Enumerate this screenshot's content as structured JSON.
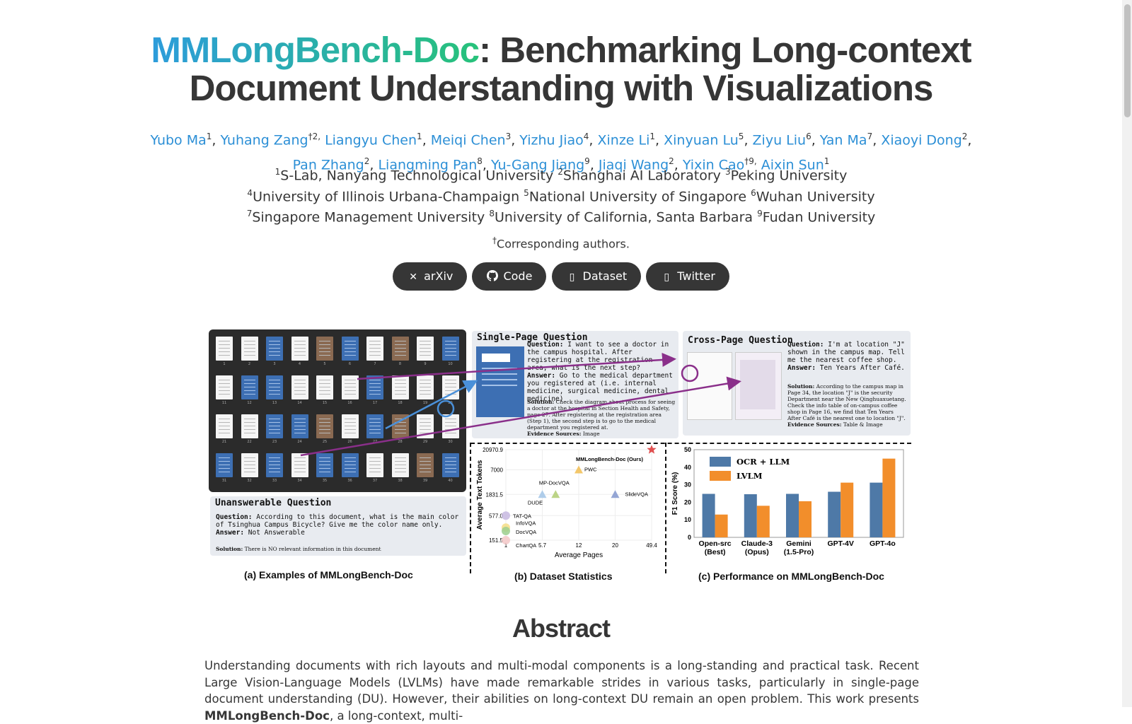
{
  "title": {
    "highlight": "MMLongBench-Doc",
    "rest": ": Benchmarking Long-context Document Understanding with Visualizations"
  },
  "authors": [
    {
      "name": "Yubo Ma",
      "sup": "1"
    },
    {
      "name": "Yuhang Zang",
      "sup": "†2,"
    },
    {
      "name": "Liangyu Chen",
      "sup": "1"
    },
    {
      "name": "Meiqi Chen",
      "sup": "3"
    },
    {
      "name": "Yizhu Jiao",
      "sup": "4"
    },
    {
      "name": "Xinze Li",
      "sup": "1"
    },
    {
      "name": "Xinyuan Lu",
      "sup": "5"
    },
    {
      "name": "Ziyu Liu",
      "sup": "6"
    },
    {
      "name": "Yan Ma",
      "sup": "7"
    },
    {
      "name": "Xiaoyi Dong",
      "sup": "2"
    },
    {
      "name": "Pan Zhang",
      "sup": "2"
    },
    {
      "name": "Liangming Pan",
      "sup": "8"
    },
    {
      "name": "Yu-Gang Jiang",
      "sup": "9"
    },
    {
      "name": "Jiaqi Wang",
      "sup": "2"
    },
    {
      "name": "Yixin Cao",
      "sup": "†9,"
    },
    {
      "name": "Aixin Sun",
      "sup": "1"
    }
  ],
  "affiliations": [
    [
      {
        "sup": "1",
        "text": "S-Lab, Nanyang Technological University "
      },
      {
        "sup": "2",
        "text": "Shanghai AI Laboratory "
      },
      {
        "sup": "3",
        "text": "Peking University"
      }
    ],
    [
      {
        "sup": "4",
        "text": "University of Illinois Urbana-Champaign "
      },
      {
        "sup": "5",
        "text": "National University of Singapore "
      },
      {
        "sup": "6",
        "text": "Wuhan University"
      }
    ],
    [
      {
        "sup": "7",
        "text": "Singapore Management University "
      },
      {
        "sup": "8",
        "text": "University of California, Santa Barbara "
      },
      {
        "sup": "9",
        "text": "Fudan University"
      }
    ]
  ],
  "corresponding": {
    "sup": "†",
    "text": "Corresponding authors."
  },
  "links": [
    {
      "label": "arXiv",
      "icon": "arxiv-icon"
    },
    {
      "label": "Code",
      "icon": "github-icon"
    },
    {
      "label": "Dataset",
      "icon": "dataset-icon"
    },
    {
      "label": "Twitter",
      "icon": "twitter-icon"
    }
  ],
  "figure": {
    "single_page": {
      "title": "Single-Page Question",
      "q_label": "Question:",
      "q": "I want to see a doctor in the campus hospital. After registering at the registration area, what is the next step?",
      "a_label": "Answer:",
      "a": "Go to the medical department you registered at (i.e. internal medicine, surgical medicine, dental medicine)",
      "sol_label": "Solution:",
      "sol": "Check the diagram about process for seeing a doctor at the hospital in Section Health and Safety, page 27. After registering at the registration area (Step 1), the second step is to go to the medical department you registered at.",
      "ev_label": "Evidence Sources:",
      "ev": "Image"
    },
    "cross_page": {
      "title": "Cross-Page Question",
      "q_label": "Question:",
      "q": "I'm at location \"J\" shown in the campus map. Tell me the nearest coffee shop.",
      "a_label": "Answer:",
      "a": "Ten Years After Café.",
      "sol_label": "Solution:",
      "sol": "According to the campus map in Page 34, the location \"J\" is the security Department near the New Qinghuaxuetang. Check the info table of on-campus coffee shop in Page 16, we find that Ten Years After Café is the nearest one to location \"J\".",
      "ev_label": "Evidence Sources:",
      "ev": "Table & Image"
    },
    "unanswerable": {
      "title": "Unanswerable Question",
      "q_label": "Question:",
      "q": "According to this document, what is the main color of Tsinghua Campus Bicycle? Give me the color name only.",
      "a_label": "Answer:",
      "a": "Not Answerable",
      "sol_label": "Solution:",
      "sol": "There is NO relevant information in this document"
    },
    "captions": {
      "a": "(a) Examples of MMLongBench-Doc",
      "b": "(b) Dataset Statistics",
      "c": "(c) Performance on MMLongBench-Doc"
    },
    "page_numbers": [
      "1",
      "2",
      "3",
      "4",
      "5",
      "6",
      "7",
      "8",
      "9",
      "10",
      "11",
      "12",
      "13",
      "14",
      "15",
      "16",
      "17",
      "18",
      "19",
      "20",
      "21",
      "22",
      "23",
      "24",
      "25",
      "26",
      "27",
      "28",
      "29",
      "30",
      "31",
      "32",
      "33",
      "34",
      "35",
      "36",
      "37",
      "38",
      "39",
      "40"
    ]
  },
  "chart_data": [
    {
      "type": "scatter",
      "title": "",
      "xlabel": "Average Pages",
      "ylabel": "Average Text Tokens",
      "x_ticks": [
        "1",
        "5.7",
        "12",
        "20",
        "49.4"
      ],
      "y_ticks": [
        "151.5",
        "577.0",
        "1831.5",
        "7000",
        "20970.9"
      ],
      "points": [
        {
          "name": "MMLongBench-Doc (Ours)",
          "x": 49.4,
          "y": 20970.9,
          "marker": "star",
          "color": "#e05050"
        },
        {
          "name": "PWC",
          "x": 12,
          "y": 7000,
          "marker": "triangle",
          "color": "#f2c15a"
        },
        {
          "name": "SlideVQA",
          "x": 20,
          "y": 1831.5,
          "marker": "triangle",
          "color": "#8a9cd0"
        },
        {
          "name": "MP-DocVQA",
          "x": 8,
          "y": 1831.5,
          "marker": "triangle",
          "color": "#b5cf7a"
        },
        {
          "name": "DUDE",
          "x": 5.7,
          "y": 1831.5,
          "marker": "triangle",
          "color": "#a6c8e8"
        },
        {
          "name": "TAT-QA",
          "x": 1,
          "y": 577.0,
          "marker": "circle",
          "color": "#c7b8e0"
        },
        {
          "name": "InfoVQA",
          "x": 1,
          "y": 300,
          "marker": "circle",
          "color": "#f5dd86"
        },
        {
          "name": "DocVQA",
          "x": 1,
          "y": 250,
          "marker": "circle",
          "color": "#9ccf8e"
        },
        {
          "name": "ChartQA",
          "x": 1,
          "y": 151.5,
          "marker": "circle",
          "color": "#f3c7c7"
        }
      ]
    },
    {
      "type": "bar",
      "title": "",
      "xlabel": "",
      "ylabel": "F1 Score (%)",
      "ylim": [
        0,
        50
      ],
      "yticks": [
        0,
        10,
        20,
        30,
        40,
        50
      ],
      "categories": [
        "Open-src\n(Best)",
        "Claude-3\n(Opus)",
        "Gemini\n(1.5-Pro)",
        "GPT-4V",
        "GPT-4o"
      ],
      "series": [
        {
          "name": "OCR + LLM",
          "color": "#4e79a7",
          "values": [
            24.8,
            24.6,
            24.8,
            26.0,
            31.2
          ]
        },
        {
          "name": "LVLM",
          "color": "#f28e2b",
          "values": [
            13.0,
            18.0,
            20.6,
            31.2,
            44.9
          ]
        }
      ],
      "legend": "top-left"
    }
  ],
  "abstract": {
    "title": "Abstract",
    "text_before": "Understanding documents with rich layouts and multi-modal components is a long-standing and practical task. Recent Large Vision-Language Models (LVLMs) have made remarkable strides in various tasks, particularly in single-page document understanding (DU). However, their abilities on long-context DU remain an open problem. This work presents ",
    "bold": "MMLongBench-Doc",
    "text_after": ", a long-context, multi-"
  }
}
